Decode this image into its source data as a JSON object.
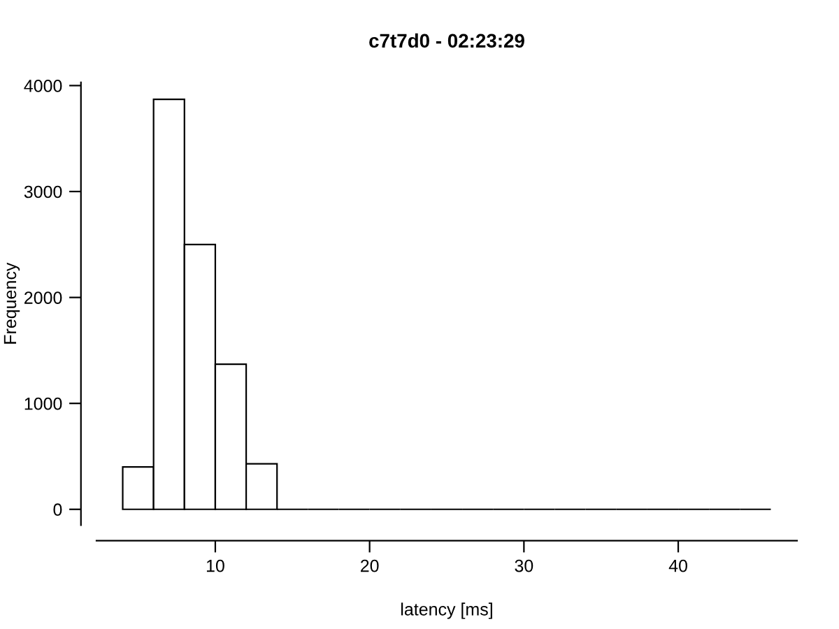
{
  "chart_data": {
    "type": "histogram",
    "title": "c7t7d0 - 02:23:29",
    "xlabel": "latency [ms]",
    "ylabel": "Frequency",
    "bins": [
      4,
      6,
      8,
      10,
      12,
      14,
      16,
      18,
      20,
      22,
      24,
      26,
      28,
      30,
      32,
      34,
      36,
      38,
      40,
      42,
      44,
      46
    ],
    "values": [
      400,
      3870,
      2500,
      1370,
      430,
      0,
      0,
      0,
      0,
      0,
      0,
      0,
      0,
      0,
      0,
      0,
      0,
      0,
      0,
      0,
      0
    ],
    "colors": [
      "#ffffff",
      "#ffffff",
      "#ffffff",
      "#ffffff",
      "#ffffff",
      "#000000",
      "#000000",
      "#000000",
      "#000000",
      "#000000",
      "#000000",
      "#000000",
      "#000000",
      "#000000",
      "#000000",
      "#000000",
      "#000000",
      "#000000",
      "#000000",
      "#000000",
      "#000000"
    ],
    "xlim": [
      2.3,
      47.7
    ],
    "ylim": [
      -150,
      4030
    ],
    "xticks": [
      10,
      20,
      30,
      40
    ],
    "yticks": [
      0,
      1000,
      2000,
      3000,
      4000
    ],
    "grid": false
  }
}
